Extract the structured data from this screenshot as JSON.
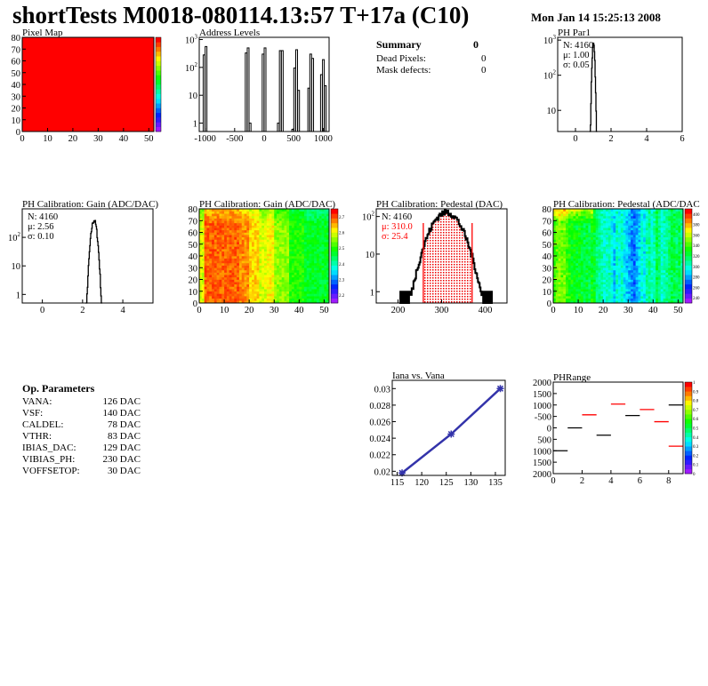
{
  "header": {
    "title": "shortTests M0018-080114.13:57 T+17a (C10)",
    "date": "Mon Jan 14 15:25:13 2008"
  },
  "summary": {
    "title": "Summary",
    "value": "0",
    "rows": [
      {
        "label": "Dead Pixels:",
        "value": "0"
      },
      {
        "label": "Mask defects:",
        "value": "0"
      }
    ]
  },
  "op_params": {
    "title": "Op. Parameters",
    "rows": [
      {
        "label": "VANA:",
        "value": "126 DAC"
      },
      {
        "label": "VSF:",
        "value": "140 DAC"
      },
      {
        "label": "CALDEL:",
        "value": "78 DAC"
      },
      {
        "label": "VTHR:",
        "value": "83 DAC"
      },
      {
        "label": "IBIAS_DAC:",
        "value": "129 DAC"
      },
      {
        "label": "VIBIAS_PH:",
        "value": "230 DAC"
      },
      {
        "label": "VOFFSETOP:",
        "value": "30 DAC"
      }
    ]
  },
  "colors": {
    "line": "#000000",
    "fit": "#ff0000",
    "graph": "#3333aa"
  },
  "chart_data": [
    {
      "id": "pixelmap",
      "type": "heatmap",
      "title": "Pixel Map",
      "xlim": [
        0,
        52
      ],
      "ylim": [
        0,
        80
      ],
      "zlim": [
        0,
        10
      ],
      "value_all": 10,
      "xticks": [
        "0",
        "10",
        "20",
        "30",
        "40",
        "50"
      ],
      "yticks": [
        "0",
        "10",
        "20",
        "30",
        "40",
        "50",
        "60",
        "70",
        "80"
      ]
    },
    {
      "id": "address",
      "type": "bar",
      "title": "Address Levels",
      "log_y": true,
      "xlim": [
        -1100,
        1100
      ],
      "xticks": [
        "-1000",
        "-500",
        "0",
        "500",
        "1000"
      ],
      "yticks": [
        "1",
        "10",
        "10^2",
        "10^3"
      ],
      "peaks": [
        {
          "x": -1000,
          "counts": [
            280,
            560
          ]
        },
        {
          "x": -270,
          "counts": [
            330,
            500,
            1
          ]
        },
        {
          "x": 0,
          "counts": [
            300,
            500
          ]
        },
        {
          "x": 275,
          "counts": [
            1,
            400,
            400
          ]
        },
        {
          "x": 535,
          "counts": [
            0.6,
            95,
            430,
            15
          ]
        },
        {
          "x": 790,
          "counts": [
            18,
            300,
            210
          ]
        },
        {
          "x": 1005,
          "counts": [
            55,
            190,
            22
          ]
        }
      ]
    },
    {
      "id": "phpar1",
      "type": "histogram",
      "title": "PH Par1",
      "log_y": true,
      "xlim": [
        -1,
        6
      ],
      "xticks": [
        "0",
        "2",
        "4",
        "6"
      ],
      "yticks": [
        "10",
        "10^2",
        "10^3"
      ],
      "stats": {
        "N": "N: 4160",
        "mean": "μ: 1.00",
        "sigma": "σ: 0.05"
      },
      "gauss": {
        "n": 4160,
        "mean": 1.0,
        "sigma": 0.05
      }
    },
    {
      "id": "gainhist",
      "type": "histogram",
      "title": "PH Calibration: Gain (ADC/DAC)",
      "log_y": true,
      "xlim": [
        -1,
        5.5
      ],
      "xticks": [
        "0",
        "2",
        "4"
      ],
      "yticks": [
        "1",
        "10",
        "10^2"
      ],
      "stats": {
        "N": "N: 4160",
        "mean": "μ: 2.56",
        "sigma": "σ: 0.10"
      },
      "gauss": {
        "n": 4160,
        "mean": 2.56,
        "sigma": 0.1
      }
    },
    {
      "id": "gainmap",
      "type": "heatmap",
      "title": "PH Calibration: Gain (ADC/DAC)",
      "xlim": [
        0,
        52
      ],
      "ylim": [
        0,
        80
      ],
      "zlim": [
        2.15,
        2.75
      ],
      "xticks": [
        "0",
        "10",
        "20",
        "30",
        "40",
        "50"
      ],
      "yticks": [
        "0",
        "10",
        "20",
        "30",
        "40",
        "50",
        "60",
        "70",
        "80"
      ],
      "zticks": [
        "2.2",
        "2.3",
        "2.4",
        "2.5",
        "2.6",
        "2.7"
      ],
      "column_means": [
        2.6,
        2.6,
        2.7,
        2.7,
        2.7,
        2.7,
        2.7,
        2.7,
        2.7,
        2.7,
        2.7,
        2.7,
        2.7,
        2.7,
        2.7,
        2.7,
        2.68,
        2.68,
        2.68,
        2.68,
        2.64,
        2.64,
        2.64,
        2.64,
        2.6,
        2.6,
        2.6,
        2.62,
        2.62,
        2.62,
        2.56,
        2.56,
        2.56,
        2.56,
        2.56,
        2.56,
        2.5,
        2.5,
        2.5,
        2.5,
        2.5,
        2.5,
        2.47,
        2.47,
        2.47,
        2.47,
        2.47,
        2.47,
        2.47,
        2.47,
        2.47,
        2.47
      ]
    },
    {
      "id": "pedhist",
      "type": "histogram",
      "title": "PH Calibration: Pedestal (DAC)",
      "log_y": true,
      "xlim": [
        150,
        450
      ],
      "xticks": [
        "200",
        "300",
        "400"
      ],
      "yticks": [
        "1",
        "10",
        "10^2"
      ],
      "stats": {
        "N": "N: 4160",
        "mean": "μ: 310.0",
        "sigma": "σ: 25.4"
      },
      "gauss": {
        "n": 4160,
        "mean": 310.0,
        "sigma": 25.4
      },
      "fit_range": [
        258,
        370
      ]
    },
    {
      "id": "pedmap",
      "type": "heatmap",
      "title": "PH Calibration: Pedestal (ADC/DAC",
      "xlim": [
        0,
        52
      ],
      "ylim": [
        0,
        80
      ],
      "zlim": [
        230,
        410
      ],
      "xticks": [
        "0",
        "10",
        "20",
        "30",
        "40",
        "50"
      ],
      "yticks": [
        "0",
        "10",
        "20",
        "30",
        "40",
        "50",
        "60",
        "70",
        "80"
      ],
      "zticks": [
        "240",
        "260",
        "280",
        "300",
        "320",
        "340",
        "360",
        "380",
        "400"
      ],
      "column_means": [
        340,
        345,
        350,
        345,
        350,
        340,
        335,
        330,
        330,
        325,
        330,
        325,
        320,
        325,
        320,
        330,
        325,
        315,
        310,
        305,
        300,
        300,
        305,
        295,
        285,
        300,
        295,
        300,
        290,
        285,
        280,
        275,
        270,
        280,
        285,
        300,
        290,
        305,
        310,
        300,
        305,
        320,
        310,
        300,
        305,
        310,
        315,
        320,
        320,
        315,
        320,
        310
      ]
    },
    {
      "id": "iana",
      "type": "line",
      "title": "Iana vs. Vana",
      "xlim": [
        114,
        137
      ],
      "ylim": [
        0.0195,
        0.031
      ],
      "xticks": [
        "115",
        "120",
        "125",
        "130",
        "135"
      ],
      "yticks": [
        "0.02",
        "0.022",
        "0.024",
        "0.026",
        "0.028",
        "0.03"
      ],
      "x": [
        116,
        126,
        136
      ],
      "y": [
        0.0198,
        0.0245,
        0.03
      ]
    },
    {
      "id": "phrange",
      "type": "heatmap",
      "title": "PHRange",
      "xlim": [
        0,
        9
      ],
      "ylim": [
        -2000,
        2000
      ],
      "zlim": [
        0,
        1
      ],
      "xticks": [
        "0",
        "2",
        "4",
        "6",
        "8"
      ],
      "yticks": [
        "2000",
        "1500",
        "1000",
        "500",
        "0",
        "-500",
        "1000",
        "1500",
        "2000"
      ],
      "zticks": [
        "0",
        "0.1",
        "0.2",
        "0.3",
        "0.4",
        "0.5",
        "0.6",
        "0.7",
        "0.8",
        "0.9",
        "1"
      ],
      "segments": [
        {
          "x": 0,
          "y": -1000,
          "c": "black"
        },
        {
          "x": 1,
          "y": 0,
          "c": "black"
        },
        {
          "x": 2,
          "y": 570,
          "c": "red"
        },
        {
          "x": 3,
          "y": -320,
          "c": "black"
        },
        {
          "x": 4,
          "y": 1040,
          "c": "red"
        },
        {
          "x": 5,
          "y": 540,
          "c": "black"
        },
        {
          "x": 6,
          "y": 800,
          "c": "red"
        },
        {
          "x": 7,
          "y": 270,
          "c": "red"
        },
        {
          "x": 8,
          "y": 1000,
          "c": "black"
        },
        {
          "x": 8,
          "y": -800,
          "c": "red"
        }
      ]
    }
  ]
}
